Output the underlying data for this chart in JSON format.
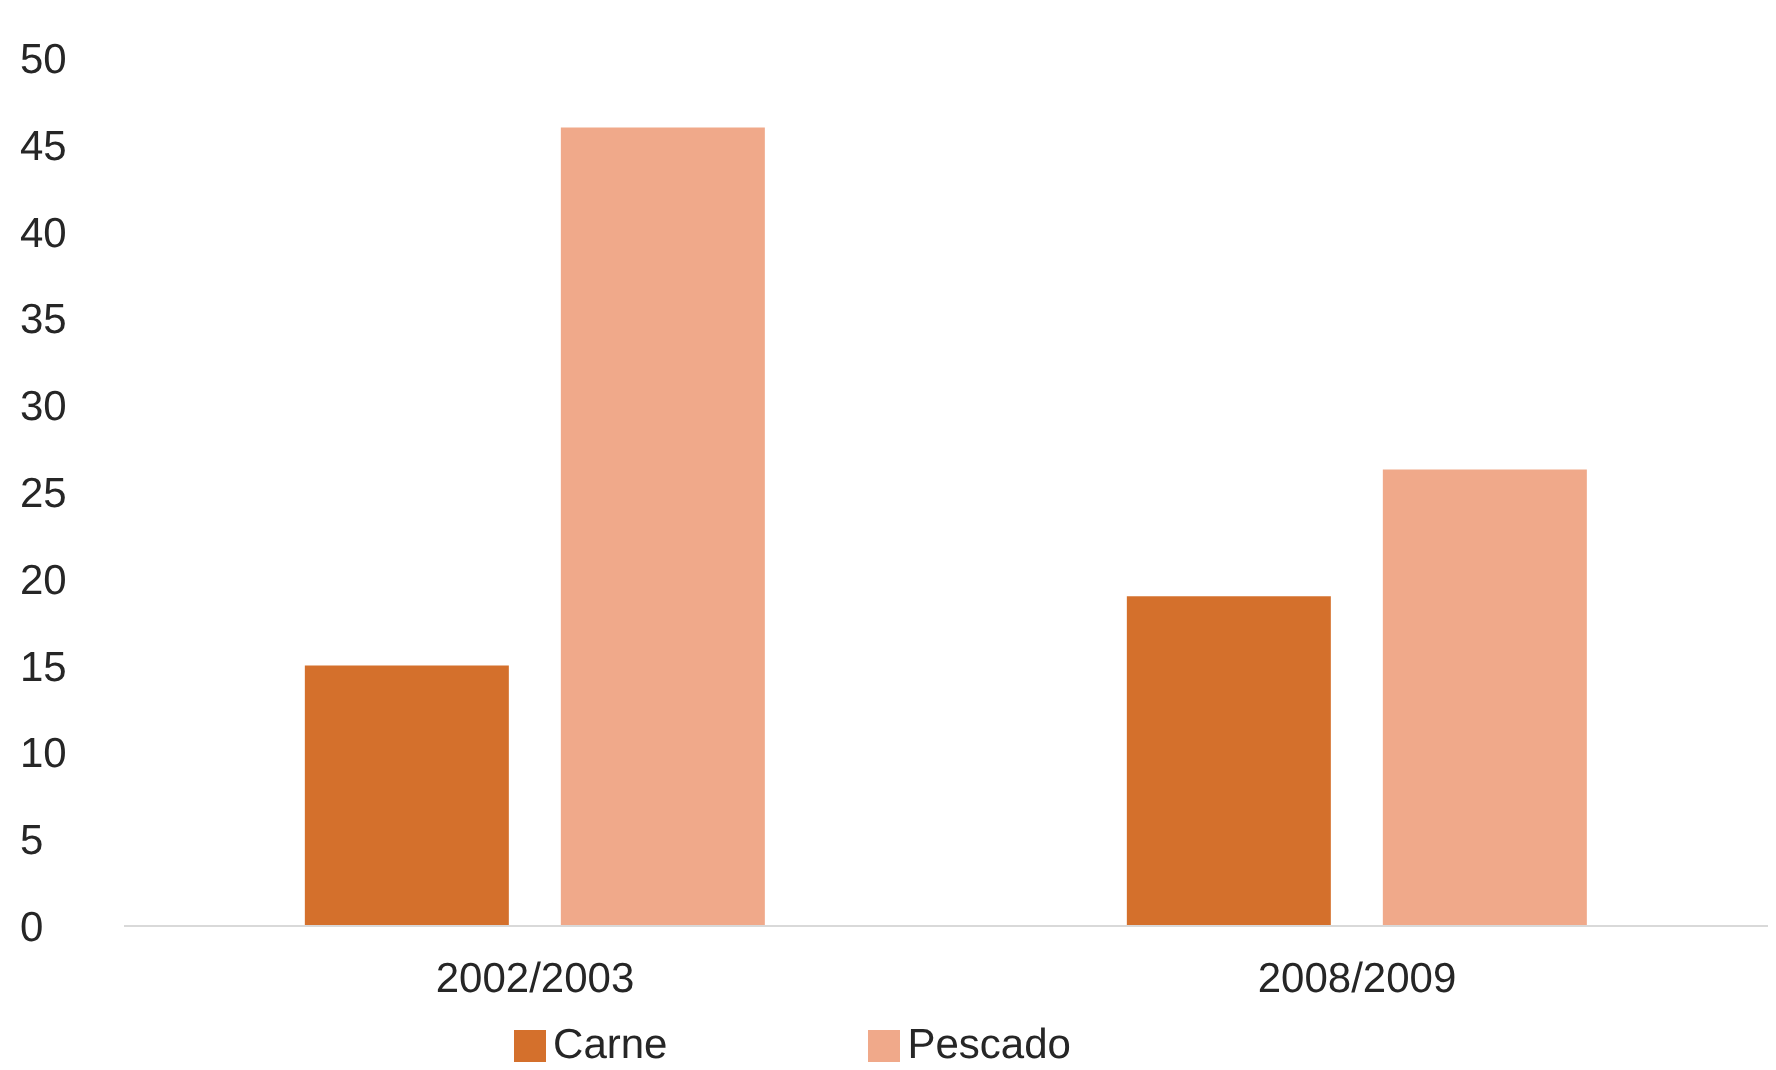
{
  "chart_data": {
    "type": "bar",
    "categories": [
      "2002/2003",
      "2008/2009"
    ],
    "series": [
      {
        "name": "Carne",
        "color": "#d4702c",
        "values": [
          15,
          19
        ]
      },
      {
        "name": "Pescado",
        "color": "#f0a98a",
        "values": [
          46,
          26.3
        ]
      }
    ],
    "ylim": [
      0,
      50
    ],
    "yticks": [
      0,
      5,
      10,
      15,
      20,
      25,
      30,
      35,
      40,
      45,
      50
    ],
    "grid": false,
    "legend": "bottom"
  }
}
